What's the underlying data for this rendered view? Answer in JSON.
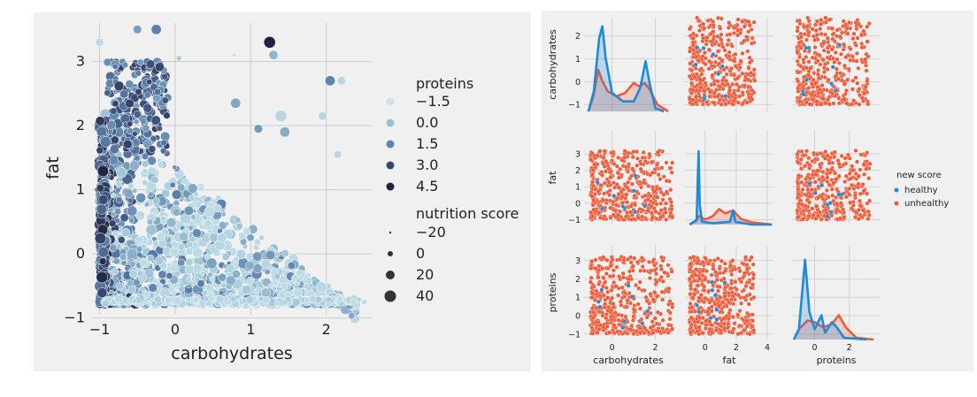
{
  "chart_data": [
    {
      "type": "scatter",
      "title": "",
      "xlabel": "carbohydrates",
      "ylabel": "fat",
      "xlim": [
        -1.1,
        2.6
      ],
      "ylim": [
        -0.95,
        3.6
      ],
      "xticks": [
        "−1",
        "0",
        "1",
        "2"
      ],
      "xtick_values": [
        -1,
        0,
        1,
        2
      ],
      "yticks": [
        "−1",
        "0",
        "1",
        "2",
        "3"
      ],
      "ytick_values": [
        -1,
        0,
        1,
        2,
        3
      ],
      "grid": true,
      "legend_position": "right",
      "hue_variable": "proteins",
      "hue_legend": [
        {
          "label": "−1.5",
          "value": -1.5,
          "color": "#c9e3ea"
        },
        {
          "label": "0.0",
          "value": 0.0,
          "color": "#98bfd3"
        },
        {
          "label": "1.5",
          "value": 1.5,
          "color": "#5f84ad"
        },
        {
          "label": "3.0",
          "value": 3.0,
          "color": "#36476f"
        },
        {
          "label": "4.5",
          "value": 4.5,
          "color": "#1e2440"
        }
      ],
      "size_variable": "nutrition score",
      "size_legend": [
        {
          "label": "−20",
          "value": -20
        },
        {
          "label": "0",
          "value": 0
        },
        {
          "label": "20",
          "value": 20
        },
        {
          "label": "40",
          "value": 40
        }
      ],
      "highlight_points": [
        {
          "x": -1.0,
          "y": 3.3,
          "proteins": -1.2,
          "score": 10
        },
        {
          "x": -0.5,
          "y": 3.5,
          "proteins": 0.8,
          "score": 10
        },
        {
          "x": -0.25,
          "y": 3.5,
          "proteins": 1.6,
          "score": 20
        },
        {
          "x": 1.25,
          "y": 3.3,
          "proteins": 4.5,
          "score": 30
        },
        {
          "x": 0.05,
          "y": 3.05,
          "proteins": -0.5,
          "score": -10
        },
        {
          "x": 0.78,
          "y": 3.1,
          "proteins": -1.2,
          "score": -20
        },
        {
          "x": 2.05,
          "y": 2.7,
          "proteins": 1.5,
          "score": 20
        },
        {
          "x": 2.2,
          "y": 2.7,
          "proteins": -1.0,
          "score": 10
        },
        {
          "x": 0.8,
          "y": 2.35,
          "proteins": 0.6,
          "score": 20
        },
        {
          "x": 1.1,
          "y": 1.95,
          "proteins": 1.0,
          "score": 10
        },
        {
          "x": 1.45,
          "y": 1.9,
          "proteins": 0.5,
          "score": 20
        },
        {
          "x": 1.4,
          "y": 2.15,
          "proteins": -1.0,
          "score": 30
        },
        {
          "x": 1.95,
          "y": 2.15,
          "proteins": -1.0,
          "score": 10
        },
        {
          "x": 2.15,
          "y": 1.55,
          "proteins": -1.0,
          "score": 5
        },
        {
          "x": 2.5,
          "y": -0.75,
          "proteins": -1.3,
          "score": -5
        },
        {
          "x": 1.3,
          "y": 3.1,
          "proteins": 0.2,
          "score": 15
        }
      ]
    },
    {
      "type": "scatter",
      "subtype": "pairplot",
      "variables": [
        "carbohydrates",
        "fat",
        "proteins"
      ],
      "hue_variable": "new score",
      "series": [
        {
          "name": "healthy",
          "color": "#1f8ad6"
        },
        {
          "name": "unhealthy",
          "color": "#ef5a38"
        }
      ],
      "axes": {
        "carbohydrates": {
          "lim": [
            -1.3,
            2.8
          ],
          "ticks": [
            "−1",
            "0",
            "1",
            "2"
          ],
          "tick_values": [
            -1,
            0,
            1,
            2
          ],
          "xticks": [
            "0",
            "2"
          ],
          "xtick_values": [
            0,
            2
          ]
        },
        "fat": {
          "lim": [
            -1.3,
            4.4
          ],
          "ticks": [
            "−1",
            "0",
            "1",
            "2",
            "3"
          ],
          "tick_values": [
            -1,
            0,
            1,
            2,
            3
          ],
          "xticks": [
            "0",
            "2",
            "4"
          ],
          "xtick_values": [
            0,
            2,
            4
          ]
        },
        "proteins": {
          "lim": [
            -1.3,
            3.8
          ],
          "ticks": [
            "−1",
            "0",
            "1",
            "2",
            "3"
          ],
          "tick_values": [
            -1,
            0,
            1,
            2,
            3
          ],
          "xticks": [
            "0",
            "2"
          ],
          "xtick_values": [
            0,
            2
          ]
        }
      },
      "kde": {
        "carbohydrates": {
          "healthy": [
            [
              -1.1,
              0
            ],
            [
              -0.85,
              0.6
            ],
            [
              -0.6,
              2.2
            ],
            [
              -0.45,
              2.55
            ],
            [
              -0.3,
              1.6
            ],
            [
              0,
              0.55
            ],
            [
              0.5,
              0.3
            ],
            [
              1.0,
              0.3
            ],
            [
              1.3,
              0.7
            ],
            [
              1.55,
              1.5
            ],
            [
              1.75,
              0.8
            ],
            [
              2.0,
              0.1
            ],
            [
              2.4,
              0
            ]
          ],
          "unhealthy": [
            [
              -1.1,
              0
            ],
            [
              -0.85,
              0.5
            ],
            [
              -0.65,
              1.25
            ],
            [
              -0.45,
              0.9
            ],
            [
              -0.2,
              0.6
            ],
            [
              0.2,
              0.45
            ],
            [
              0.6,
              0.55
            ],
            [
              1.0,
              0.85
            ],
            [
              1.25,
              0.75
            ],
            [
              1.5,
              0.85
            ],
            [
              1.7,
              0.7
            ],
            [
              2.1,
              0.2
            ],
            [
              2.6,
              0
            ]
          ]
        },
        "fat": {
          "healthy": [
            [
              -1.0,
              0
            ],
            [
              -0.55,
              0.15
            ],
            [
              -0.42,
              2.6
            ],
            [
              -0.35,
              0.7
            ],
            [
              -0.2,
              0.1
            ],
            [
              0.5,
              0.05
            ],
            [
              1.6,
              0.1
            ],
            [
              1.8,
              0.5
            ],
            [
              1.95,
              0.1
            ],
            [
              3,
              0
            ],
            [
              4.3,
              0
            ]
          ],
          "unhealthy": [
            [
              -1.0,
              0
            ],
            [
              -0.6,
              0.15
            ],
            [
              -0.4,
              0.3
            ],
            [
              0,
              0.18
            ],
            [
              0.5,
              0.3
            ],
            [
              0.9,
              0.55
            ],
            [
              1.3,
              0.4
            ],
            [
              1.8,
              0.5
            ],
            [
              2.3,
              0.2
            ],
            [
              3,
              0.08
            ],
            [
              4.3,
              0
            ]
          ],
          "ylim": [
            0,
            3.2
          ]
        },
        "proteins": {
          "healthy": [
            [
              -1.2,
              0
            ],
            [
              -0.9,
              0.3
            ],
            [
              -0.55,
              2.3
            ],
            [
              -0.3,
              0.8
            ],
            [
              0,
              0.3
            ],
            [
              0.4,
              0.7
            ],
            [
              0.6,
              0.2
            ],
            [
              1.0,
              0.5
            ],
            [
              1.2,
              0.4
            ],
            [
              1.7,
              0.05
            ],
            [
              3,
              0
            ]
          ],
          "unhealthy": [
            [
              -1.2,
              0
            ],
            [
              -0.9,
              0.3
            ],
            [
              -0.4,
              0.55
            ],
            [
              0,
              0.5
            ],
            [
              0.5,
              0.35
            ],
            [
              1.0,
              0.45
            ],
            [
              1.4,
              0.7
            ],
            [
              1.8,
              0.35
            ],
            [
              2.4,
              0.05
            ],
            [
              3.4,
              0
            ]
          ],
          "ylim": [
            0,
            2.6
          ]
        }
      }
    }
  ],
  "legend_right": {
    "title": "new score",
    "items": [
      "healthy",
      "unhealthy"
    ]
  }
}
